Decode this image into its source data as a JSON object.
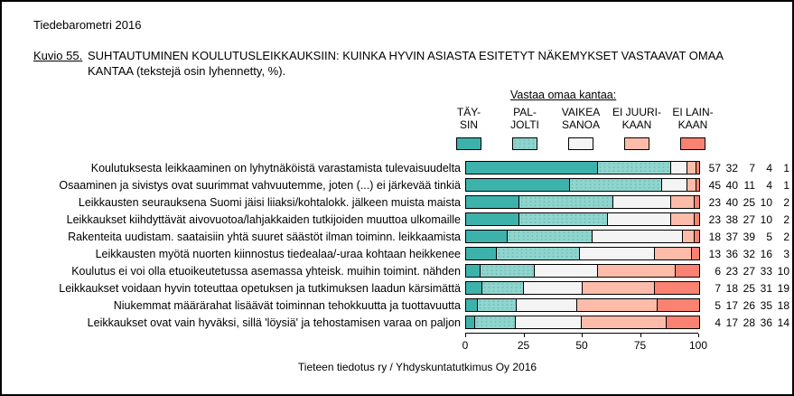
{
  "header": {
    "report_title": "Tiedebarometri 2016",
    "figure_label": "Kuvio 55.",
    "figure_caption": "SUHTAUTUMINEN KOULUTUSLEIKKAUKSIIN: KUINKA HYVIN ASIASTA ESITETYT NÄKEMYKSET VASTAAVAT OMAA KANTAA (tekstejä osin lyhennetty, %)."
  },
  "legend": {
    "title": "Vastaa omaa kantaa:",
    "items": [
      {
        "label_line1": "TÄY-",
        "label_line2": "SIN",
        "color": "#3DB2AB"
      },
      {
        "label_line1": "PAL-",
        "label_line2": "JOLTI",
        "color": "#8FD5CE"
      },
      {
        "label_line1": "VAIKEA",
        "label_line2": "SANOA",
        "color": "#F4F4F4"
      },
      {
        "label_line1": "EI JUURI-",
        "label_line2": "KAAN",
        "color": "#FDBCAA"
      },
      {
        "label_line1": "EI LAIN-",
        "label_line2": "KAAN",
        "color": "#FA8272"
      }
    ]
  },
  "chart_data": {
    "type": "bar",
    "orientation": "horizontal-stacked",
    "title": "SUHTAUTUMINEN KOULUTUSLEIKKAUKSIIN: KUINKA HYVIN ASIASTA ESITETYT NÄKEMYKSET VASTAAVAT OMAA KANTAA (tekstejä osin lyhennetty, %)",
    "categories": [
      "Koulutuksesta leikkaaminen on lyhytnäköistä varastamista tulevaisuudelta",
      "Osaaminen ja sivistys ovat suurimmat vahvuutemme, joten (...) ei järkevää tinkiä",
      "Leikkausten seurauksena Suomi jäisi liiaksi/kohtalokk. jälkeen muista maista",
      "Leikkaukset kiihdyttävät aivovuotoa/lahjakkaiden tutkijoiden muuttoa ulkomaille",
      "Rakenteita uudistam. saataisiin yhtä suuret säästöt ilman toiminn. leikkaamista",
      "Leikkausten myötä nuorten kiinnostus tiedealaa/-uraa kohtaan heikkenee",
      "Koulutus ei voi olla etuoikeutetussa asemassa yhteisk. muihin toimint. nähden",
      "Leikkaukset voidaan hyvin toteuttaa opetuksen ja tutkimuksen laadun kärsimättä",
      "Niukemmat määrärahat lisäävät toiminnan tehokkuutta ja tuottavuutta",
      "Leikkaukset ovat vain hyväksi, sillä 'löysiä' ja tehostamisen varaa on paljon"
    ],
    "series": [
      {
        "name": "TÄYSIN",
        "key": "taysin",
        "color": "#3DB2AB",
        "pattern": "solid",
        "values": [
          57,
          45,
          23,
          23,
          18,
          13,
          6,
          7,
          5,
          4
        ]
      },
      {
        "name": "PALJOLTI",
        "key": "paljolti",
        "color": "#8FD5CE",
        "pattern": "dots",
        "values": [
          32,
          40,
          40,
          38,
          37,
          36,
          23,
          18,
          17,
          17
        ]
      },
      {
        "name": "VAIKEA SANOA",
        "key": "vaikea-sanoa",
        "color": "#F4F4F4",
        "pattern": "solid",
        "values": [
          7,
          11,
          25,
          27,
          39,
          32,
          27,
          25,
          26,
          28
        ]
      },
      {
        "name": "EI JUURIKAAN",
        "key": "ei-juurikaan",
        "color": "#FDBCAA",
        "pattern": "solid",
        "values": [
          4,
          4,
          10,
          10,
          5,
          16,
          33,
          31,
          35,
          36
        ]
      },
      {
        "name": "EI LAINKAAN",
        "key": "ei-lainkaan",
        "color": "#FA8272",
        "pattern": "solid",
        "values": [
          1,
          1,
          2,
          2,
          2,
          3,
          10,
          19,
          18,
          14
        ]
      }
    ],
    "x_ticks": [
      "0",
      "25",
      "50",
      "75",
      "100"
    ],
    "xlim": [
      0,
      100
    ],
    "grid": false,
    "legend_position": "top",
    "value_labels_shown": true
  },
  "footer": {
    "source": "Tieteen tiedotus ry / Yhdyskuntatutkimus Oy 2016"
  }
}
